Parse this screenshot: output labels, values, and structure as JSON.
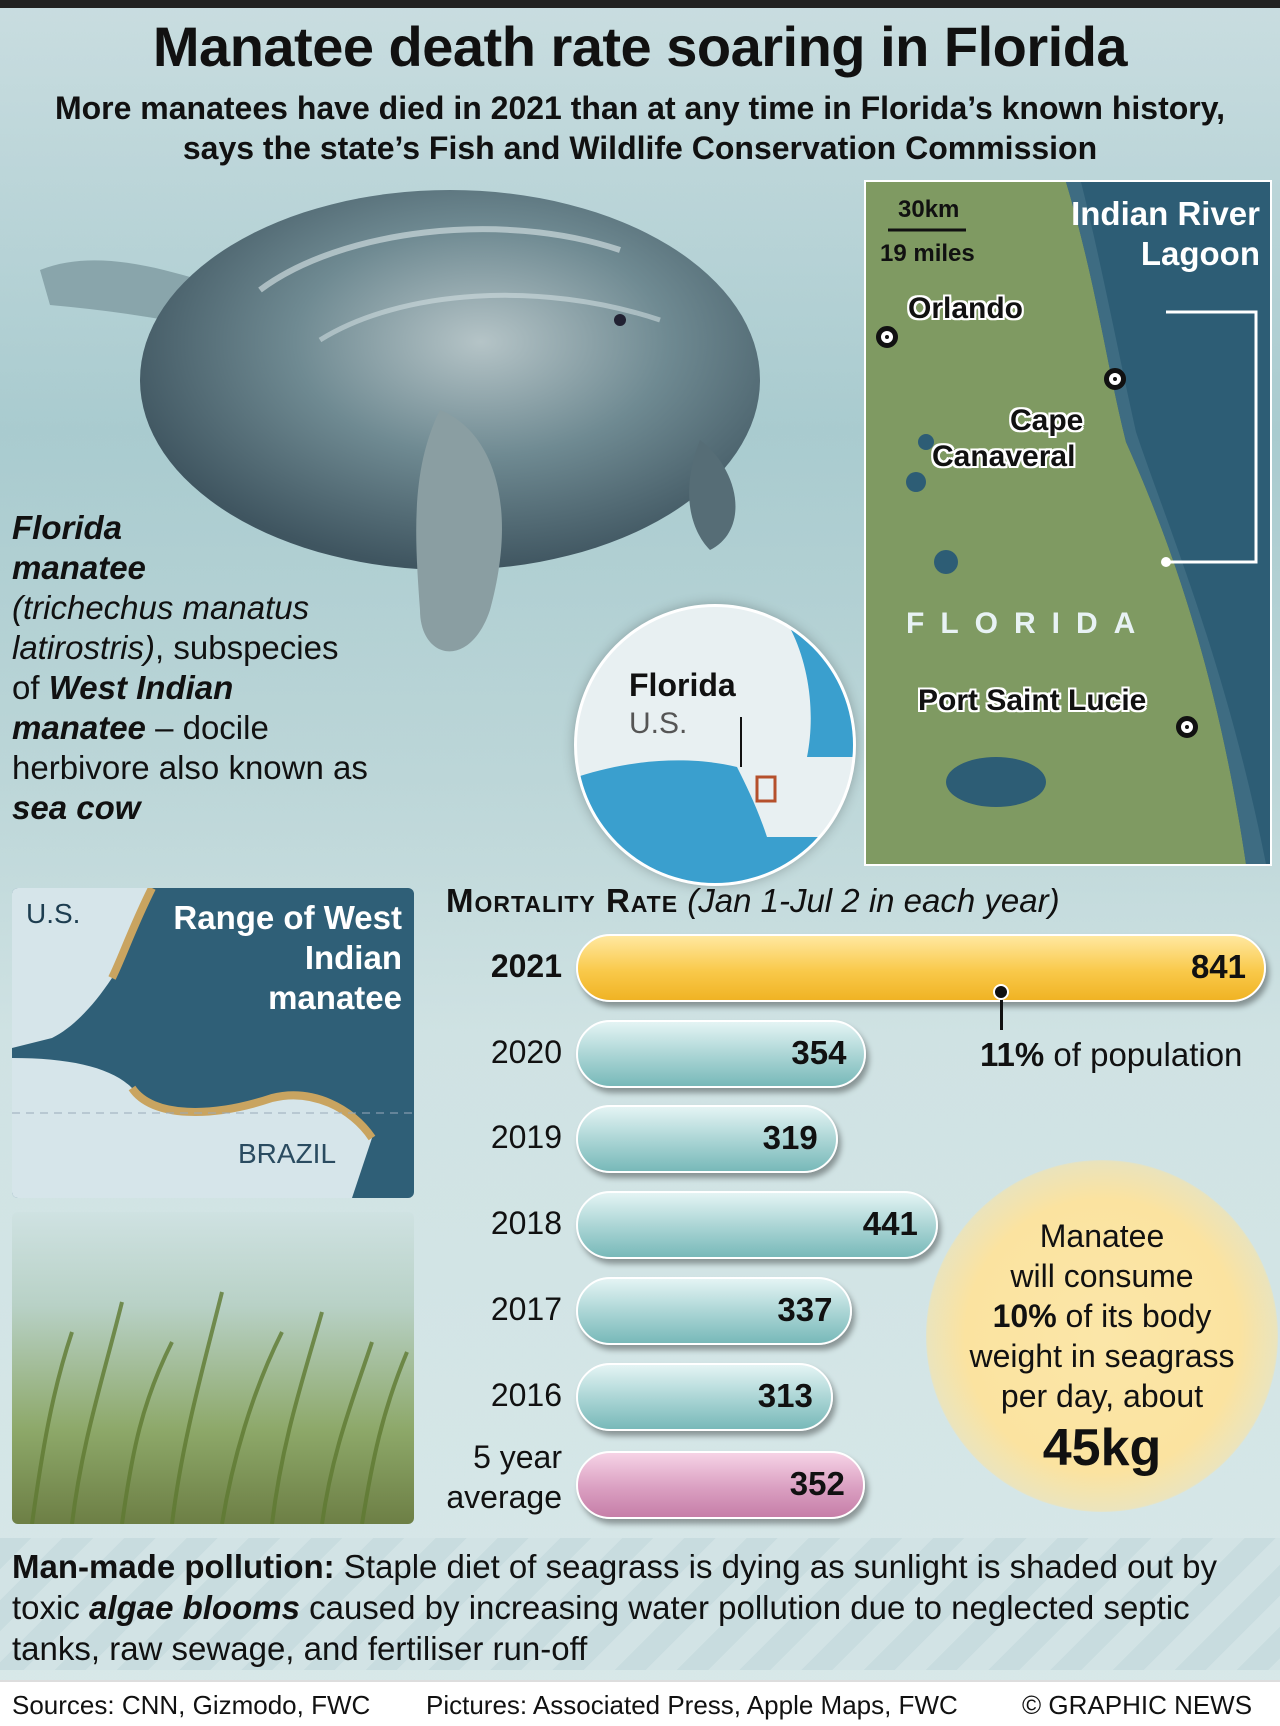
{
  "header": {
    "title": "Manatee death rate soaring in Florida",
    "subtitle": "More manatees have died in 2021 than at any time in Florida’s known history, says the state’s Fish and Wildlife Conservation Commission"
  },
  "species": {
    "name_line1": "Florida",
    "name_line2": "manatee",
    "latin": "(trichechus manatus latirostris)",
    "comma": ",",
    "sub1": "subspecies of ",
    "sub_name": "West Indian manatee",
    "sub2": " – docile herbivore also known as ",
    "nickname": "sea cow"
  },
  "map": {
    "scale_km": "30km",
    "scale_miles": "19 miles",
    "lagoon": "Indian River Lagoon",
    "orlando": "Orlando",
    "cape1": "Cape",
    "cape2": "Canaveral",
    "florida": "FLORIDA",
    "port": "Port Saint Lucie"
  },
  "globe": {
    "florida": "Florida",
    "us": "U.S."
  },
  "range": {
    "us": "U.S.",
    "title": "Range of West Indian manatee",
    "brazil": "BRAZIL"
  },
  "chart_data": {
    "type": "bar",
    "orientation": "horizontal",
    "title": "Mortality Rate",
    "subtitle": "(Jan 1-Jul 2 in each year)",
    "categories": [
      "2021",
      "2020",
      "2019",
      "2018",
      "2017",
      "2016",
      "5 year average"
    ],
    "values": [
      841,
      354,
      319,
      441,
      337,
      313,
      352
    ],
    "xlim": [
      0,
      841
    ],
    "grid": false,
    "annotation": {
      "bold": "11%",
      "text": " of population"
    },
    "colors": {
      "current": "#f6bd33",
      "history": "#a7d3d3",
      "average": "#d89cbf"
    }
  },
  "consume": {
    "l1": "Manatee",
    "l2": "will consume",
    "l3_bold": "10%",
    "l3": " of its body",
    "l4": "weight in seagrass",
    "l5": "per day, about",
    "big": "45kg"
  },
  "pollution": {
    "lead": "Man-made pollution:",
    "t1": " Staple diet of seagrass is dying as sunlight is shaded out by toxic ",
    "em": "algae blooms",
    "t2": " caused by increasing water pollution due to neglected septic tanks, raw sewage, and fertiliser run-off"
  },
  "footer": {
    "sources": "Sources: CNN, Gizmodo, FWC",
    "pictures": "Pictures: Associated Press, Apple Maps, FWC",
    "credit": "© GRAPHIC NEWS"
  }
}
